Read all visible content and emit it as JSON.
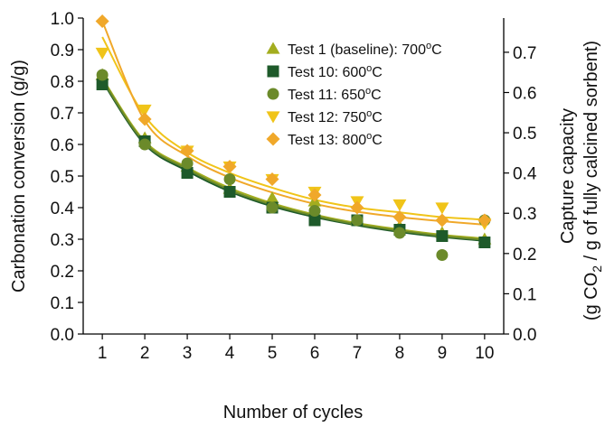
{
  "chart_data": {
    "type": "scatter",
    "xlabel": "Number of cycles",
    "ylabel": "Carbonation conversion (g/g)",
    "y2label_line1": "Capture capacity",
    "y2label_line2_prefix": "(g CO",
    "y2label_line2_sub": "2",
    "y2label_line2_suffix": " / g of fully calcined sorbent)",
    "xlim": [
      0.55,
      10.45
    ],
    "ylim": [
      0.0,
      1.0
    ],
    "y2lim": [
      0.0,
      0.785
    ],
    "xticks": [
      "1",
      "2",
      "3",
      "4",
      "5",
      "6",
      "7",
      "8",
      "9",
      "10"
    ],
    "yticks": [
      "0.0",
      "0.1",
      "0.2",
      "0.3",
      "0.4",
      "0.5",
      "0.6",
      "0.7",
      "0.8",
      "0.9",
      "1.0"
    ],
    "y2ticks": [
      "0.0",
      "0.1",
      "0.2",
      "0.3",
      "0.4",
      "0.5",
      "0.6",
      "0.7"
    ],
    "legend_position": "top-right",
    "grid": false,
    "series": [
      {
        "name": "Test 1 (baseline): 700°C",
        "label_main": "Test 1 (baseline): 700",
        "marker": "triangle-up",
        "color": "#a3ad1f",
        "x": [
          1,
          2,
          3,
          4,
          5,
          6,
          7,
          8,
          9,
          10
        ],
        "values": [
          0.82,
          0.62,
          0.53,
          0.46,
          0.43,
          0.42,
          0.36,
          0.34,
          0.32,
          0.3
        ],
        "fit": [
          0.81,
          0.61,
          0.527,
          0.462,
          0.414,
          0.378,
          0.351,
          0.331,
          0.314,
          0.302
        ]
      },
      {
        "name": "Test 10: 600°C",
        "label_main": "Test 10: 600",
        "marker": "square",
        "color": "#1e5a2a",
        "x": [
          1,
          2,
          3,
          4,
          5,
          6,
          7,
          8,
          9,
          10
        ],
        "values": [
          0.79,
          0.61,
          0.51,
          0.45,
          0.4,
          0.36,
          0.36,
          0.33,
          0.31,
          0.29
        ],
        "fit": [
          0.8,
          0.6,
          0.516,
          0.451,
          0.404,
          0.37,
          0.344,
          0.323,
          0.307,
          0.295
        ]
      },
      {
        "name": "Test 11: 650°C",
        "label_main": "Test 11: 650",
        "marker": "circle",
        "color": "#6b8a2a",
        "x": [
          1,
          2,
          3,
          4,
          5,
          6,
          7,
          8,
          9,
          10
        ],
        "values": [
          0.82,
          0.6,
          0.54,
          0.49,
          0.4,
          0.39,
          0.36,
          0.32,
          0.25,
          0.36
        ],
        "fit": [
          0.805,
          0.605,
          0.522,
          0.456,
          0.409,
          0.374,
          0.347,
          0.327,
          0.31,
          0.298
        ]
      },
      {
        "name": "Test 12: 750°C",
        "label_main": "Test 12: 750",
        "marker": "triangle-down",
        "color": "#f0c419",
        "x": [
          1,
          2,
          3,
          4,
          5,
          6,
          7,
          8,
          9,
          10
        ],
        "values": [
          0.89,
          0.71,
          0.58,
          0.53,
          0.49,
          0.45,
          0.42,
          0.41,
          0.4,
          0.35
        ],
        "fit": [
          0.94,
          0.69,
          0.575,
          0.51,
          0.463,
          0.425,
          0.4,
          0.385,
          0.37,
          0.362
        ]
      },
      {
        "name": "Test 13: 800°C",
        "label_main": "Test 13: 800",
        "marker": "diamond",
        "color": "#f0a82a",
        "x": [
          1,
          2,
          3,
          4,
          5,
          6,
          7,
          8,
          9,
          10
        ],
        "values": [
          0.99,
          0.68,
          0.58,
          0.53,
          0.49,
          0.44,
          0.4,
          0.37,
          0.36,
          0.36
        ],
        "fit": [
          0.99,
          0.675,
          0.563,
          0.495,
          0.448,
          0.412,
          0.387,
          0.37,
          0.357,
          0.346
        ]
      }
    ],
    "legend_degree_sup": "o",
    "legend_degree_unit": "C"
  }
}
